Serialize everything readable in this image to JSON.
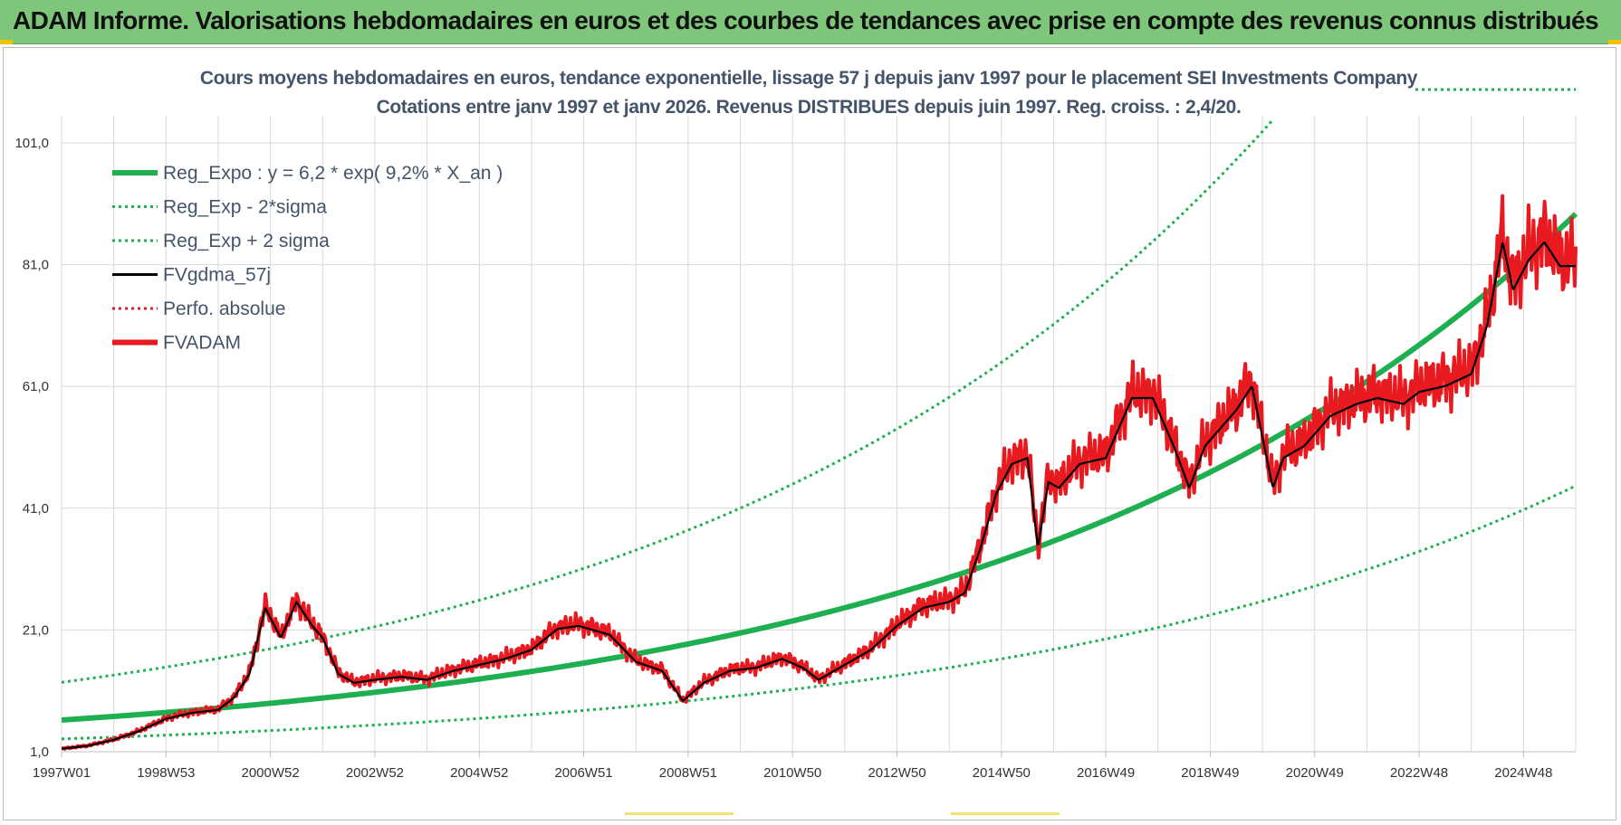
{
  "banner": {
    "title": "ADAM Informe. Valorisations hebdomadaires en euros et des courbes de tendances avec prise en compte des revenus connus distribués"
  },
  "colors": {
    "banner": "#7dc67a",
    "reg_expo": "#1eb050",
    "sigma": "#1eb050",
    "fvgdma": "#000000",
    "perfo": "#d9232a",
    "fvadam": "#e8191f"
  },
  "chart_data": {
    "type": "line",
    "title_line1": "Cours moyens hebdomadaires en euros, tendance exponentielle, lissage 57 j depuis janv 1997 pour le placement SEI Investments Company",
    "title_line2": "Cotations entre janv 1997 et janv 2026. Revenus DISTRIBUES depuis juin 1997. Reg. croiss. : 2,4/20.",
    "ylim": [
      1,
      101
    ],
    "y_ticks": [
      "101,0",
      "81,0",
      "61,0",
      "41,0",
      "21,0",
      "1,0"
    ],
    "x_ticks": [
      "1997W01",
      "1998W53",
      "2000W52",
      "2002W52",
      "2004W52",
      "2006W51",
      "2008W51",
      "2010W50",
      "2012W50",
      "2014W50",
      "2016W49",
      "2018W49",
      "2020W49",
      "2022W48",
      "2024W48"
    ],
    "grid": true,
    "legend_position": "top-left",
    "legend": [
      {
        "label": "Reg_Expo : y = 6,2 * exp( 9,2% *  X_an )",
        "style": "solid-thick",
        "color": "#1eb050"
      },
      {
        "label": "Reg_Exp - 2*sigma",
        "style": "dotted",
        "color": "#1eb050"
      },
      {
        "label": "Reg_Exp + 2 sigma",
        "style": "dotted",
        "color": "#1eb050"
      },
      {
        "label": "FVgdma_57j",
        "style": "solid",
        "color": "#000000"
      },
      {
        "label": "Perfo. absolue",
        "style": "dotted",
        "color": "#d9232a"
      },
      {
        "label": "FVADAM",
        "style": "solid-thick",
        "color": "#e8191f"
      }
    ],
    "regression": {
      "a": 6.2,
      "b": 0.092,
      "sigma_factor_low": 0.5,
      "sigma_factor_high": 2.0
    },
    "series": [
      {
        "name": "FVADAM",
        "x": [
          1997.0,
          1997.5,
          1998.0,
          1998.5,
          1999.0,
          1999.5,
          2000.0,
          2000.3,
          2000.6,
          2000.9,
          2001.2,
          2001.5,
          2001.8,
          2002.0,
          2002.3,
          2002.6,
          2003.0,
          2003.5,
          2004.0,
          2004.5,
          2005.0,
          2005.5,
          2006.0,
          2006.5,
          2006.9,
          2007.5,
          2008.0,
          2008.5,
          2008.9,
          2009.3,
          2009.8,
          2010.3,
          2010.8,
          2011.2,
          2011.5,
          2012.0,
          2012.5,
          2013.0,
          2013.5,
          2014.0,
          2014.3,
          2014.6,
          2014.9,
          2015.2,
          2015.5,
          2015.7,
          2015.9,
          2016.1,
          2016.5,
          2017.0,
          2017.5,
          2017.9,
          2018.3,
          2018.6,
          2018.9,
          2019.2,
          2019.5,
          2019.8,
          2020.2,
          2020.4,
          2020.8,
          2021.3,
          2021.8,
          2022.2,
          2022.7,
          2023.0,
          2023.5,
          2024.0,
          2024.3,
          2024.6,
          2024.8,
          2025.1,
          2025.4,
          2025.7,
          2026.0
        ],
        "values": [
          1.5,
          2.0,
          3.0,
          4.5,
          6.5,
          7.5,
          8.0,
          10.0,
          14.0,
          25.0,
          20.0,
          26.0,
          22.0,
          20.0,
          14.0,
          12.5,
          13.0,
          13.5,
          13.0,
          14.5,
          15.5,
          16.5,
          18.0,
          21.5,
          22.0,
          20.5,
          16.0,
          14.5,
          9.5,
          12.5,
          14.5,
          15.0,
          16.5,
          15.0,
          13.0,
          15.5,
          18.0,
          22.0,
          25.0,
          26.0,
          27.5,
          35.0,
          44.0,
          49.0,
          50.0,
          35.0,
          46.0,
          45.0,
          49.0,
          50.0,
          60.0,
          60.0,
          52.0,
          45.0,
          52.0,
          55.0,
          58.0,
          62.0,
          45.0,
          50.0,
          52.0,
          57.0,
          59.0,
          60.0,
          59.0,
          61.0,
          62.0,
          64.0,
          72.0,
          86.0,
          78.0,
          83.0,
          86.0,
          82.0,
          82.0
        ]
      }
    ]
  }
}
